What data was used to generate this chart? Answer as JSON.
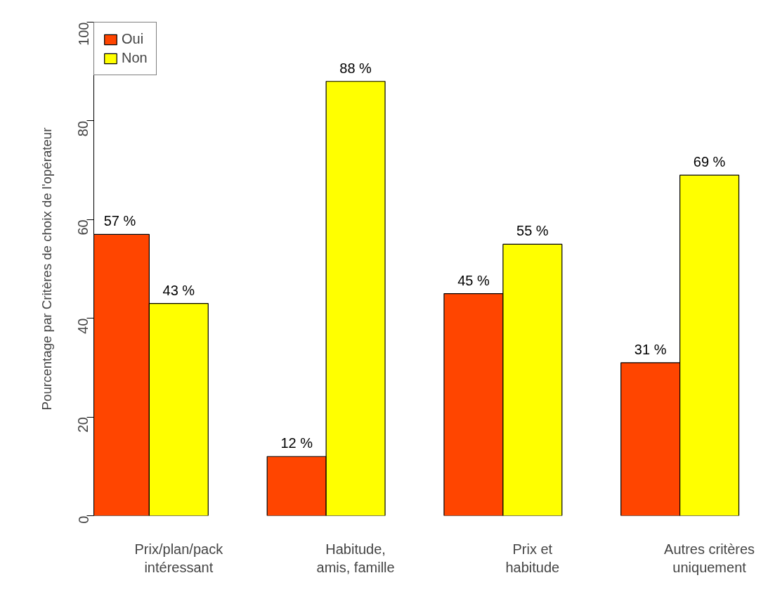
{
  "chart_data": {
    "type": "bar",
    "ylabel": "Pourcentage par Critères de choix de l'opérateur",
    "categories": [
      "Prix/plan/pack\nintéressant",
      "Habitude,\namis, famille",
      "Prix et\nhabitude",
      "Autres critères\nuniquement"
    ],
    "series": [
      {
        "name": "Oui",
        "color": "#ff4500",
        "values": [
          57,
          12,
          45,
          31
        ],
        "value_labels": [
          "57 %",
          "12 %",
          "45 %",
          "31 %"
        ]
      },
      {
        "name": "Non",
        "color": "#ffff00",
        "values": [
          43,
          88,
          55,
          69
        ],
        "value_labels": [
          "43 %",
          "88 %",
          "55 %",
          "69 %"
        ]
      }
    ],
    "ylim": [
      0,
      100
    ],
    "yticks": [
      0,
      20,
      40,
      60,
      80,
      100
    ],
    "grid": false,
    "legend": "top left"
  }
}
